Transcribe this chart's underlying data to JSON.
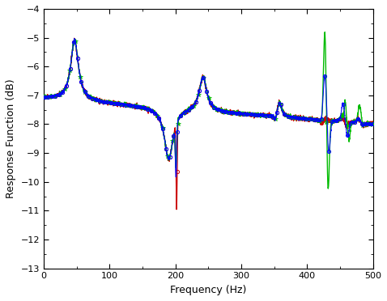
{
  "xlabel": "Frequency (Hz)",
  "ylabel": "Response Function (dB)",
  "xlim": [
    0,
    500
  ],
  "ylim": [
    -13,
    -4
  ],
  "yticks": [
    -13,
    -12,
    -11,
    -10,
    -9,
    -8,
    -7,
    -6,
    -5,
    -4
  ],
  "xticks": [
    0,
    100,
    200,
    300,
    400,
    500
  ],
  "color_updated": "#0000FF",
  "color_experimental": "#CC0000",
  "color_analytical": "#00BB00",
  "figsize": [
    4.78,
    3.72
  ],
  "dpi": 100
}
